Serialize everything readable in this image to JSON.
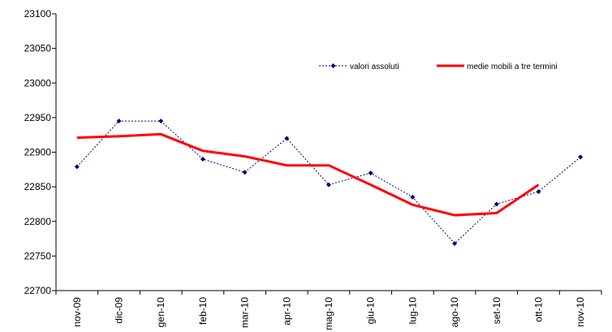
{
  "chart_data": {
    "type": "line",
    "categories": [
      "nov-09",
      "dic-09",
      "gen-10",
      "feb-10",
      "mar-10",
      "apr-10",
      "mag-10",
      "giu-10",
      "lug-10",
      "ago-10",
      "set-10",
      "ott-10",
      "nov-10"
    ],
    "ylim": [
      22700,
      23100
    ],
    "yticks": [
      22700,
      22750,
      22800,
      22850,
      22900,
      22950,
      23000,
      23050,
      23100
    ],
    "grid": false,
    "legend_position": "top-right",
    "series": [
      {
        "name": "valori assoluti",
        "color": "#000080",
        "style": "dotted-with-diamond-markers",
        "values": [
          22879,
          22945,
          22945,
          22890,
          22871,
          22920,
          22853,
          22870,
          22835,
          22768,
          22825,
          22843,
          22893
        ]
      },
      {
        "name": "medie mobili a tre termini",
        "color": "#ff0000",
        "style": "solid",
        "values": [
          22921,
          22923,
          22926,
          22902,
          22894,
          22881,
          22881,
          22853,
          22824,
          22809,
          22812,
          22853,
          null
        ]
      }
    ]
  }
}
